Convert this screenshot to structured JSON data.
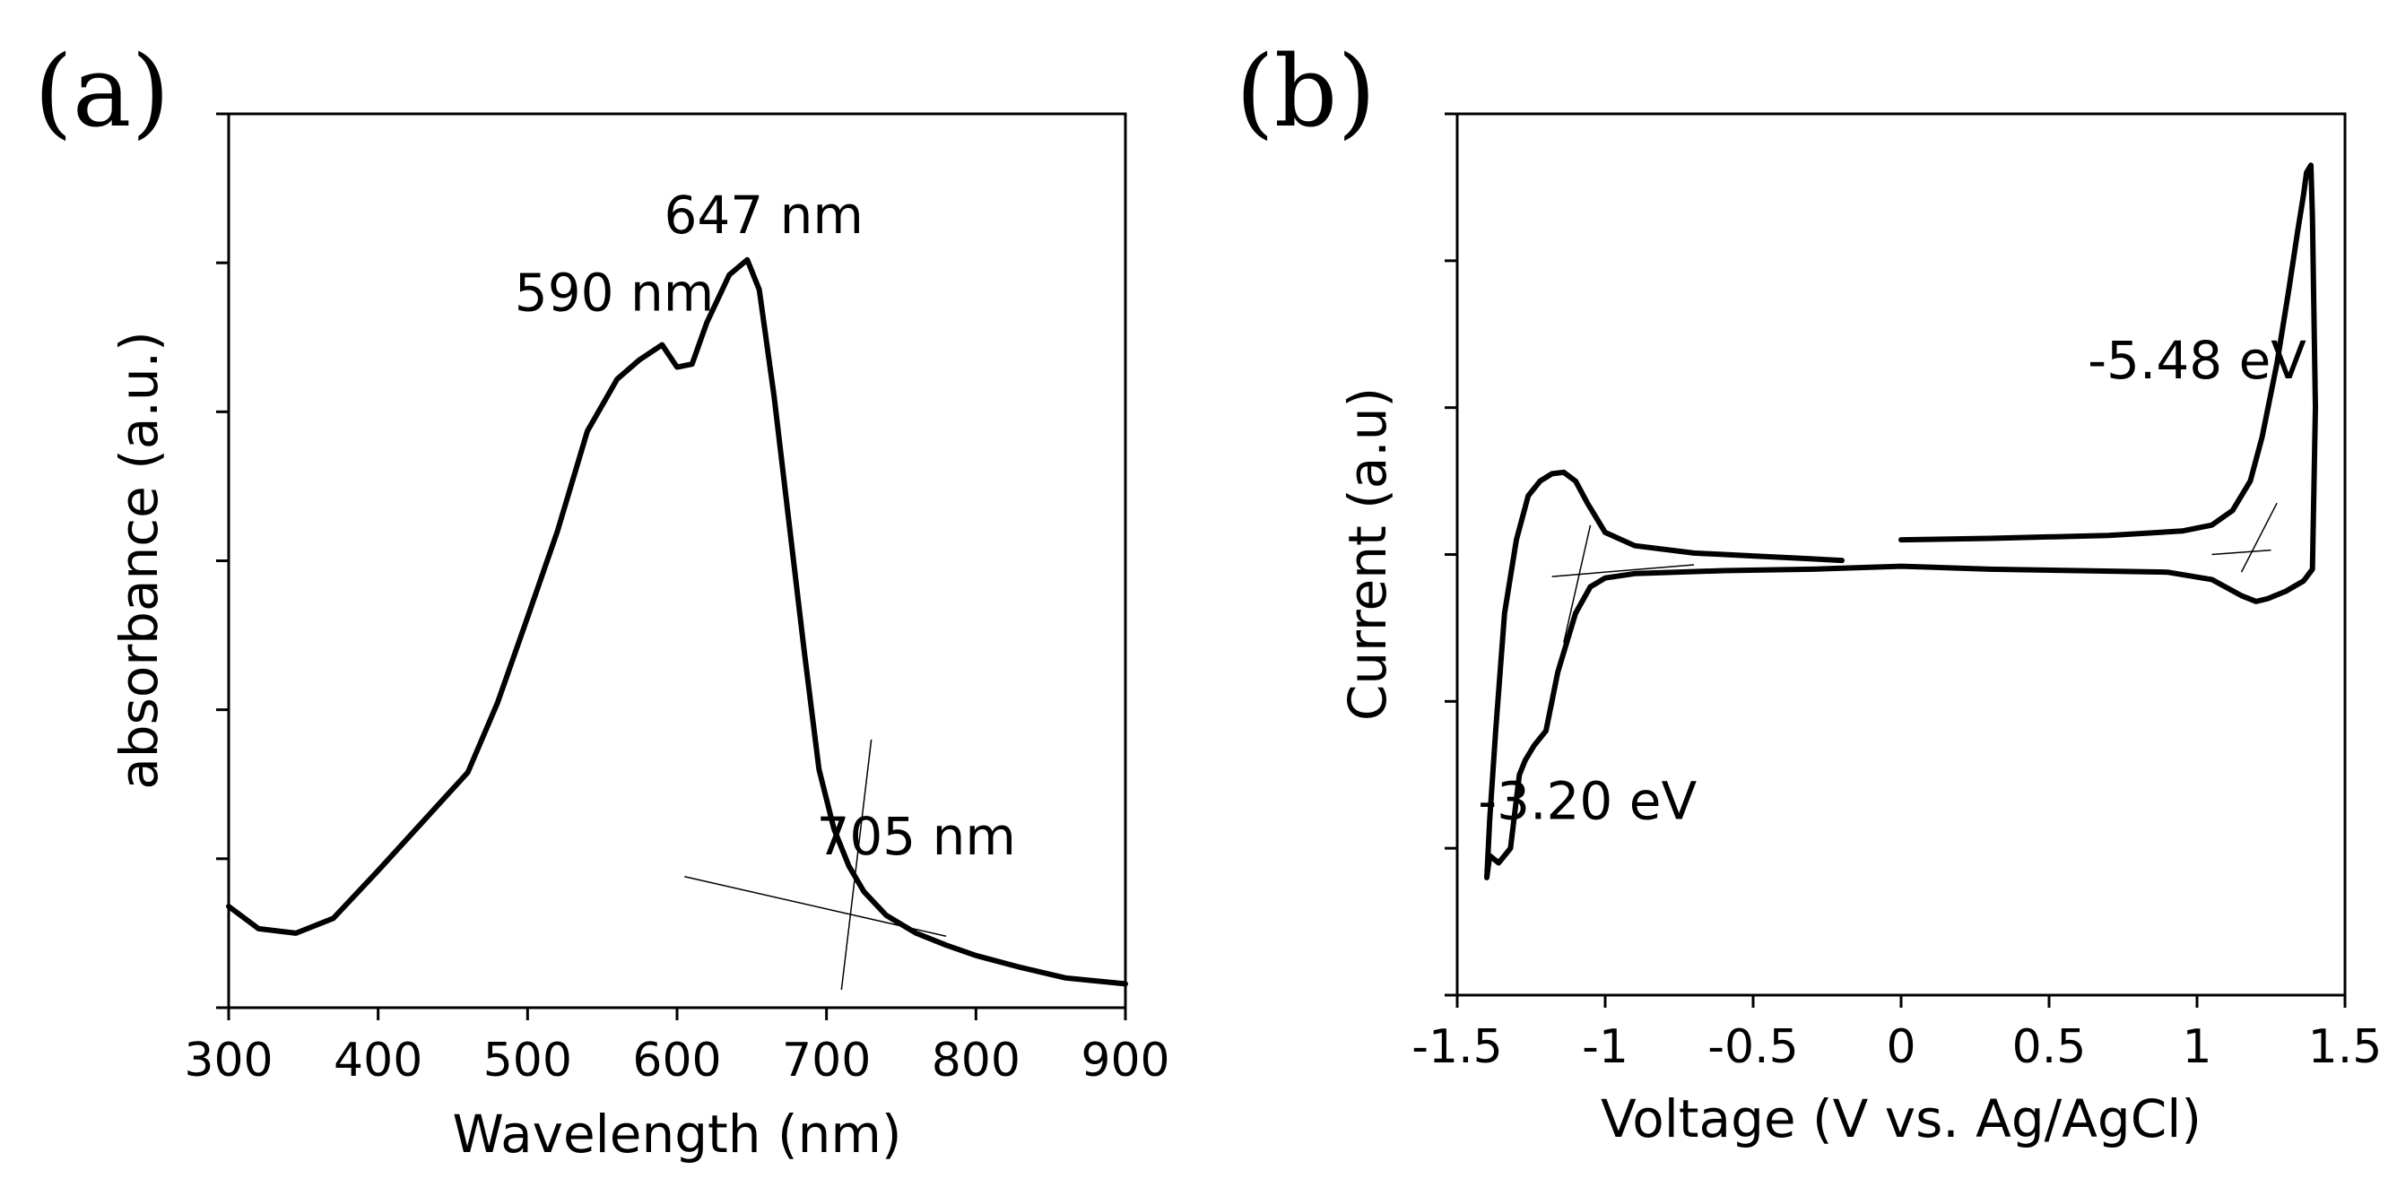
{
  "chart_data": [
    {
      "panel_label": "(a)",
      "type": "line",
      "title": "",
      "xlabel": "Wavelength (nm)",
      "ylabel": "absorbance (a.u.)",
      "xlim": [
        300,
        900
      ],
      "ylim": [
        0,
        6
      ],
      "xticks": [
        "300",
        "400",
        "500",
        "600",
        "700",
        "800",
        "900"
      ],
      "yticks_count": 7,
      "grid": false,
      "series": [
        {
          "name": "absorbance",
          "x": [
            300,
            320,
            345,
            370,
            400,
            430,
            460,
            480,
            500,
            520,
            540,
            560,
            575,
            590,
            600,
            610,
            620,
            635,
            647,
            655,
            665,
            675,
            685,
            695,
            705,
            715,
            725,
            740,
            760,
            780,
            800,
            830,
            860,
            900
          ],
          "y": [
            0.68,
            0.53,
            0.5,
            0.6,
            0.92,
            1.25,
            1.58,
            2.05,
            2.62,
            3.2,
            3.87,
            4.22,
            4.35,
            4.45,
            4.3,
            4.32,
            4.6,
            4.92,
            5.02,
            4.82,
            4.1,
            3.25,
            2.4,
            1.6,
            1.2,
            0.95,
            0.78,
            0.62,
            0.5,
            0.42,
            0.35,
            0.27,
            0.2,
            0.16
          ]
        }
      ],
      "guides": [
        {
          "x": [
            730,
            710
          ],
          "y": [
            1.8,
            0.12
          ]
        },
        {
          "x": [
            605,
            780
          ],
          "y": [
            0.88,
            0.48
          ]
        }
      ],
      "annotations": [
        {
          "text": "647 nm",
          "x": 658,
          "y": 5.2
        },
        {
          "text": "590 nm",
          "x": 558,
          "y": 4.68
        },
        {
          "text": "705 nm",
          "x": 760,
          "y": 1.03
        }
      ]
    },
    {
      "panel_label": "(b)",
      "type": "line",
      "title": "",
      "xlabel": "Voltage (V vs. Ag/AgCl)",
      "ylabel": "Current (a.u)",
      "xlim": [
        -1.5,
        1.5
      ],
      "ylim": [
        -3,
        3
      ],
      "xticks": [
        "-1.5",
        "-1",
        "-0.5",
        "0",
        "0.5",
        "1",
        "1.5"
      ],
      "yticks_count": 7,
      "grid": false,
      "series": [
        {
          "name": "cyclic voltammogram",
          "x": [
            0,
            0.3,
            0.7,
            0.95,
            1.05,
            1.12,
            1.18,
            1.22,
            1.27,
            1.31,
            1.34,
            1.36,
            1.37,
            1.385,
            1.39,
            1.4,
            1.39,
            1.36,
            1.3,
            1.24,
            1.2,
            1.15,
            1.05,
            0.9,
            0.6,
            0.3,
            0,
            -0.3,
            -0.6,
            -0.9,
            -1.0,
            -1.05,
            -1.1,
            -1.16,
            -1.2,
            -1.24,
            -1.27,
            -1.29,
            -1.32,
            -1.36,
            -1.39,
            -1.4,
            -1.39,
            -1.37,
            -1.34,
            -1.3,
            -1.26,
            -1.22,
            -1.18,
            -1.14,
            -1.1,
            -1.06,
            -1.0,
            -0.9,
            -0.7,
            -0.5,
            -0.3,
            -0.2
          ],
          "y": [
            0.1,
            0.11,
            0.13,
            0.16,
            0.2,
            0.3,
            0.5,
            0.8,
            1.3,
            1.8,
            2.2,
            2.45,
            2.6,
            2.65,
            2.3,
            1.0,
            -0.1,
            -0.18,
            -0.25,
            -0.3,
            -0.32,
            -0.28,
            -0.17,
            -0.12,
            -0.11,
            -0.1,
            -0.08,
            -0.1,
            -0.11,
            -0.13,
            -0.16,
            -0.22,
            -0.4,
            -0.8,
            -1.2,
            -1.3,
            -1.4,
            -1.5,
            -2.0,
            -2.1,
            -2.05,
            -2.2,
            -1.8,
            -1.2,
            -0.4,
            0.1,
            0.4,
            0.5,
            0.55,
            0.56,
            0.5,
            0.35,
            0.15,
            0.06,
            0.01,
            -0.01,
            -0.03,
            -0.04
          ]
        }
      ],
      "guides": [
        {
          "x": [
            -1.05,
            -1.14
          ],
          "y": [
            0.2,
            -0.6
          ]
        },
        {
          "x": [
            -1.18,
            -0.7
          ],
          "y": [
            -0.15,
            -0.07
          ]
        },
        {
          "x": [
            1.15,
            1.27
          ],
          "y": [
            -0.12,
            0.35
          ]
        },
        {
          "x": [
            1.05,
            1.25
          ],
          "y": [
            0.0,
            0.03
          ]
        }
      ],
      "annotations": [
        {
          "text": "-5.48 eV",
          "x": 1.0,
          "y": 1.2
        },
        {
          "text": "-3.20 eV",
          "x": -1.06,
          "y": -1.8
        }
      ]
    }
  ]
}
